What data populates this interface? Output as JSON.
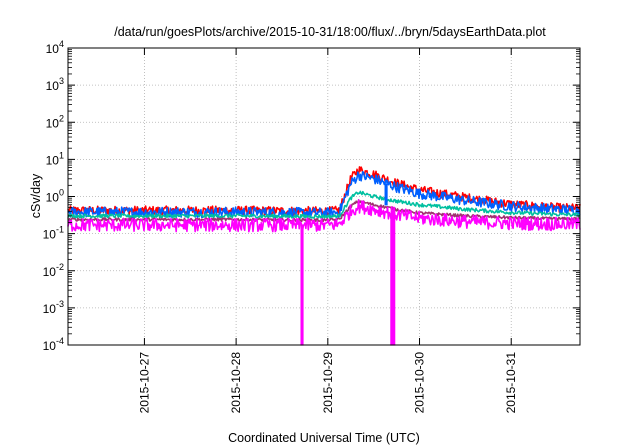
{
  "chart_data": {
    "type": "line",
    "title": "/data/run/goesPlots/archive/2015-10-31/18:00/flux/../bryn/5daysEarthData.plot",
    "xlabel": "Coordinated Universal Time (UTC)",
    "ylabel": "cSv/day",
    "yscale": "log",
    "ylim": [
      0.0001,
      10000
    ],
    "xlim": [
      "2015-10-26 04:00",
      "2015-10-31 18:00"
    ],
    "grid": true,
    "y_ticks": [
      {
        "value": 0.0001,
        "base": "10",
        "exp": "-4"
      },
      {
        "value": 0.001,
        "base": "10",
        "exp": "-3"
      },
      {
        "value": 0.01,
        "base": "10",
        "exp": "-2"
      },
      {
        "value": 0.1,
        "base": "10",
        "exp": "-1"
      },
      {
        "value": 1,
        "base": "10",
        "exp": "0"
      },
      {
        "value": 10,
        "base": "10",
        "exp": "1"
      },
      {
        "value": 100,
        "base": "10",
        "exp": "2"
      },
      {
        "value": 1000,
        "base": "10",
        "exp": "3"
      },
      {
        "value": 10000,
        "base": "10",
        "exp": "4"
      }
    ],
    "x_ticks": [
      "2015-10-27",
      "2015-10-28",
      "2015-10-29",
      "2015-10-30",
      "2015-10-31"
    ],
    "series": [
      {
        "color": "#ff0000",
        "noise": 0.12,
        "points": [
          [
            "2015-10-26 04:00",
            0.42
          ],
          [
            "2015-10-27 00:00",
            0.42
          ],
          [
            "2015-10-28 00:00",
            0.42
          ],
          [
            "2015-10-29 00:00",
            0.4
          ],
          [
            "2015-10-29 03:00",
            0.42
          ],
          [
            "2015-10-29 06:00",
            3.0
          ],
          [
            "2015-10-29 08:00",
            5.3
          ],
          [
            "2015-10-29 12:00",
            4.0
          ],
          [
            "2015-10-29 18:00",
            2.3
          ],
          [
            "2015-10-30 00:00",
            1.5
          ],
          [
            "2015-10-30 12:00",
            0.95
          ],
          [
            "2015-10-31 00:00",
            0.62
          ],
          [
            "2015-10-31 12:00",
            0.5
          ],
          [
            "2015-10-31 18:00",
            0.48
          ]
        ]
      },
      {
        "color": "#0060ff",
        "noise": 0.14,
        "points": [
          [
            "2015-10-26 04:00",
            0.38
          ],
          [
            "2015-10-27 00:00",
            0.38
          ],
          [
            "2015-10-28 00:00",
            0.38
          ],
          [
            "2015-10-29 00:00",
            0.36
          ],
          [
            "2015-10-29 03:00",
            0.38
          ],
          [
            "2015-10-29 06:00",
            2.2
          ],
          [
            "2015-10-29 08:00",
            3.8
          ],
          [
            "2015-10-29 12:00",
            3.0
          ],
          [
            "2015-10-29 18:00",
            1.8
          ],
          [
            "2015-10-30 00:00",
            1.2
          ],
          [
            "2015-10-30 12:00",
            0.78
          ],
          [
            "2015-10-31 00:00",
            0.55
          ],
          [
            "2015-10-31 12:00",
            0.45
          ],
          [
            "2015-10-31 18:00",
            0.43
          ]
        ]
      },
      {
        "color": "#00c0a0",
        "noise": 0.05,
        "points": [
          [
            "2015-10-26 04:00",
            0.3
          ],
          [
            "2015-10-27 00:00",
            0.3
          ],
          [
            "2015-10-28 00:00",
            0.3
          ],
          [
            "2015-10-29 00:00",
            0.29
          ],
          [
            "2015-10-29 03:00",
            0.3
          ],
          [
            "2015-10-29 06:00",
            0.9
          ],
          [
            "2015-10-29 08:00",
            1.3
          ],
          [
            "2015-10-29 12:00",
            1.0
          ],
          [
            "2015-10-29 18:00",
            0.75
          ],
          [
            "2015-10-30 00:00",
            0.6
          ],
          [
            "2015-10-30 12:00",
            0.45
          ],
          [
            "2015-10-31 00:00",
            0.37
          ],
          [
            "2015-10-31 12:00",
            0.33
          ],
          [
            "2015-10-31 18:00",
            0.32
          ]
        ]
      },
      {
        "color": "#a03070",
        "noise": 0.04,
        "points": [
          [
            "2015-10-26 04:00",
            0.24
          ],
          [
            "2015-10-27 00:00",
            0.24
          ],
          [
            "2015-10-28 00:00",
            0.24
          ],
          [
            "2015-10-29 00:00",
            0.23
          ],
          [
            "2015-10-29 03:00",
            0.24
          ],
          [
            "2015-10-29 06:00",
            0.55
          ],
          [
            "2015-10-29 08:00",
            0.75
          ],
          [
            "2015-10-29 12:00",
            0.6
          ],
          [
            "2015-10-29 18:00",
            0.45
          ],
          [
            "2015-10-30 00:00",
            0.36
          ],
          [
            "2015-10-30 12:00",
            0.3
          ],
          [
            "2015-10-31 00:00",
            0.27
          ],
          [
            "2015-10-31 12:00",
            0.25
          ],
          [
            "2015-10-31 18:00",
            0.25
          ]
        ]
      },
      {
        "color": "#ff00ff",
        "noise": 0.18,
        "points": [
          [
            "2015-10-26 04:00",
            0.17
          ],
          [
            "2015-10-27 00:00",
            0.17
          ],
          [
            "2015-10-28 00:00",
            0.17
          ],
          [
            "2015-10-29 00:00",
            0.17
          ],
          [
            "2015-10-29 03:00",
            0.18
          ],
          [
            "2015-10-29 06:00",
            0.4
          ],
          [
            "2015-10-29 08:00",
            0.55
          ],
          [
            "2015-10-29 12:00",
            0.45
          ],
          [
            "2015-10-29 18:00",
            0.33
          ],
          [
            "2015-10-30 00:00",
            0.26
          ],
          [
            "2015-10-30 12:00",
            0.21
          ],
          [
            "2015-10-31 00:00",
            0.19
          ],
          [
            "2015-10-31 12:00",
            0.18
          ],
          [
            "2015-10-31 18:00",
            0.18
          ]
        ]
      }
    ],
    "dropouts": [
      {
        "color": "#ff00ff",
        "from": "2015-10-28 17:00",
        "to": "2015-10-28 17:30",
        "from_value": 0.17,
        "to_value": 0.0001
      },
      {
        "color": "#ff00ff",
        "from": "2015-10-29 16:30",
        "to": "2015-10-29 17:30",
        "from_value": 0.33,
        "to_value": 0.0001
      },
      {
        "color": "#0060ff",
        "from": "2015-10-29 15:00",
        "to": "2015-10-29 15:30",
        "from_value": 2.2,
        "to_value": 0.6
      }
    ]
  }
}
